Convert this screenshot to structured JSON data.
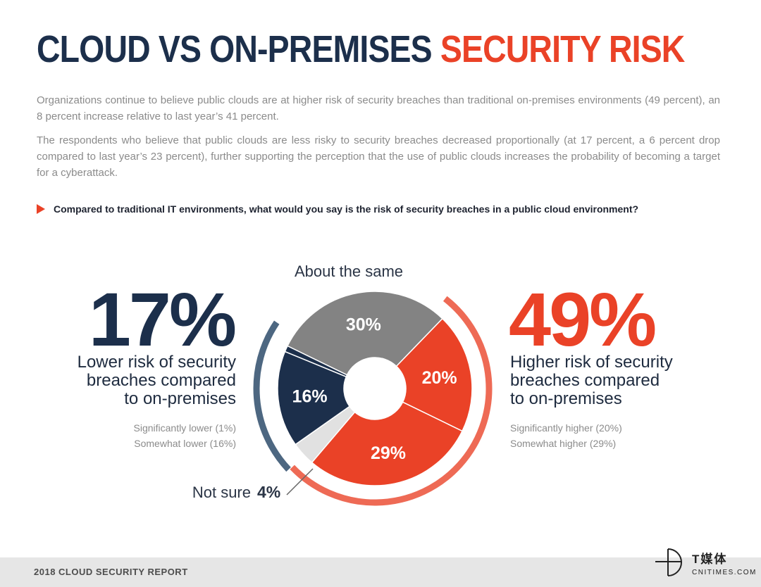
{
  "title": {
    "part1": "CLOUD VS ON-PREMISES",
    "part2": "SECURITY RISK"
  },
  "paragraphs": [
    "Organizations continue to believe public clouds are at higher risk of security breaches than traditional on-premises environments (49 percent), an 8 percent increase relative to last year’s 41 percent.",
    "The respondents who believe that public clouds are less risky to security breaches decreased proportionally (at 17 percent, a 6 percent drop compared to last year’s 23 percent), further supporting the perception that the use of public clouds increases the probability of becoming a target for a cyberattack."
  ],
  "question": "Compared to traditional IT environments, what would you say is the risk of security breaches in a public cloud environment?",
  "left_summary": {
    "percent": "17%",
    "lines": [
      "Lower risk of security",
      "breaches compared",
      "to on-premises"
    ],
    "details": [
      "Significantly lower (1%)",
      "Somewhat lower (16%)"
    ]
  },
  "right_summary": {
    "percent": "49%",
    "lines": [
      "Higher risk of security",
      "breaches compared",
      "to on-premises"
    ],
    "details": [
      "Significantly higher (20%)",
      "Somewhat higher (29%)"
    ]
  },
  "colors": {
    "navy": "#1c2f4b",
    "orange": "#ea4227",
    "gray": "#838383",
    "light_gray": "#e1e1e1",
    "arc_left": "#4d6781",
    "arc_right": "#ee6a55"
  },
  "chart_data": {
    "type": "pie",
    "donut": true,
    "unit": "%",
    "slices": [
      {
        "label": "About the same",
        "value": 30,
        "value_label": "30%",
        "color": "#838383"
      },
      {
        "label": "Significantly higher",
        "value": 20,
        "value_label": "20%",
        "color": "#ea4227"
      },
      {
        "label": "Somewhat higher",
        "value": 29,
        "value_label": "29%",
        "color": "#ea4227"
      },
      {
        "label": "Not sure",
        "value": 4,
        "value_label": "4%",
        "color": "#e1e1e1"
      },
      {
        "label": "Somewhat lower",
        "value": 16,
        "value_label": "16%",
        "color": "#1c2f4b"
      },
      {
        "label": "Significantly lower",
        "value": 1,
        "value_label": "",
        "color": "#1c2f4b"
      }
    ],
    "outside_labels": {
      "about_same": "About the same",
      "not_sure_text": "Not sure",
      "not_sure_value": "4%"
    },
    "group_arcs": [
      {
        "label": "Higher risk",
        "value": 49
      },
      {
        "label": "Lower risk",
        "value": 17
      }
    ]
  },
  "footer": {
    "report": "2018 CLOUD SECURITY REPORT",
    "logo_cn": "T媒体",
    "logo_en": "CNITIMES.COM"
  }
}
